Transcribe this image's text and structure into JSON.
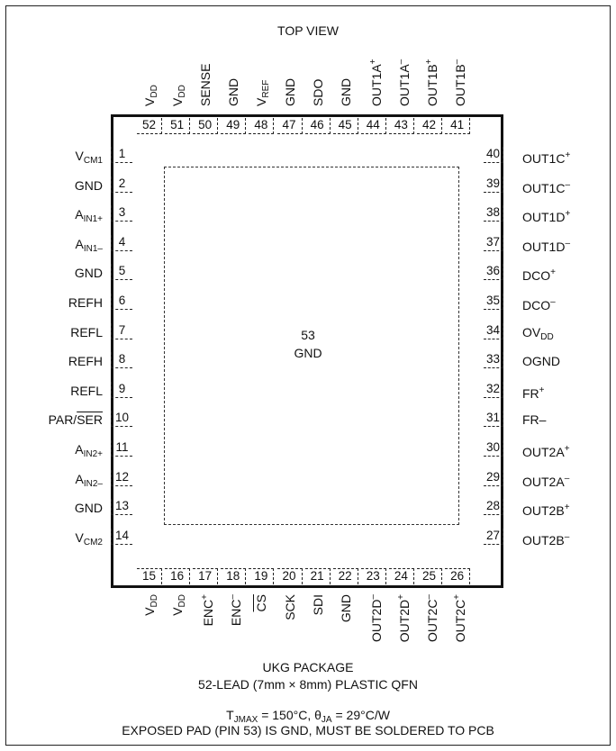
{
  "top_view": "TOP VIEW",
  "center_pin_number": "53",
  "center_pin_name": "GND",
  "package_name": "UKG PACKAGE",
  "package_desc": "52-LEAD (7mm × 8mm) PLASTIC QFN",
  "thermal_note": "T_JMAX = 150°C, θ_JA = 29°C/W",
  "thermal_parts": {
    "t": "T",
    "t_sub": "JMAX",
    "mid": " = 150°C, θ",
    "theta_sub": "JA",
    "end": " = 29°C/W"
  },
  "exposed_pad_note": "EXPOSED PAD (PIN 53) IS GND, MUST BE SOLDERED TO PCB",
  "left_pins": [
    {
      "num": "1",
      "name": "V",
      "sub": "CM1"
    },
    {
      "num": "2",
      "name": "GND"
    },
    {
      "num": "3",
      "name": "A",
      "sub": "IN1+"
    },
    {
      "num": "4",
      "name": "A",
      "sub": "IN1–"
    },
    {
      "num": "5",
      "name": "GND"
    },
    {
      "num": "6",
      "name": "REFH"
    },
    {
      "num": "7",
      "name": "REFL"
    },
    {
      "num": "8",
      "name": "REFH"
    },
    {
      "num": "9",
      "name": "REFL"
    },
    {
      "num": "10",
      "name": "PAR/",
      "over": "SER"
    },
    {
      "num": "11",
      "name": "A",
      "sub": "IN2+"
    },
    {
      "num": "12",
      "name": "A",
      "sub": "IN2–"
    },
    {
      "num": "13",
      "name": "GND"
    },
    {
      "num": "14",
      "name": "V",
      "sub": "CM2"
    }
  ],
  "bottom_pins": [
    {
      "num": "15",
      "name": "V",
      "sub": "DD"
    },
    {
      "num": "16",
      "name": "V",
      "sub": "DD"
    },
    {
      "num": "17",
      "name": "ENC",
      "sup": "+"
    },
    {
      "num": "18",
      "name": "ENC",
      "sup": "–"
    },
    {
      "num": "19",
      "over": "CS"
    },
    {
      "num": "20",
      "name": "SCK"
    },
    {
      "num": "21",
      "name": "SDI"
    },
    {
      "num": "22",
      "name": "GND"
    },
    {
      "num": "23",
      "name": "OUT2D",
      "sup": "–"
    },
    {
      "num": "24",
      "name": "OUT2D",
      "sup": "+"
    },
    {
      "num": "25",
      "name": "OUT2C",
      "sup": "–"
    },
    {
      "num": "26",
      "name": "OUT2C",
      "sup": "+"
    }
  ],
  "right_pins": [
    {
      "num": "27",
      "name": "OUT2B",
      "sup": "–"
    },
    {
      "num": "28",
      "name": "OUT2B",
      "sup": "+"
    },
    {
      "num": "29",
      "name": "OUT2A",
      "sup": "–"
    },
    {
      "num": "30",
      "name": "OUT2A",
      "sup": "+"
    },
    {
      "num": "31",
      "name": "FR–"
    },
    {
      "num": "32",
      "name": "FR",
      "sup": "+"
    },
    {
      "num": "33",
      "name": "OGND"
    },
    {
      "num": "34",
      "name": "OV",
      "sub": "DD"
    },
    {
      "num": "35",
      "name": "DCO",
      "sup": "–"
    },
    {
      "num": "36",
      "name": "DCO",
      "sup": "+"
    },
    {
      "num": "37",
      "name": "OUT1D",
      "sup": "–"
    },
    {
      "num": "38",
      "name": "OUT1D",
      "sup": "+"
    },
    {
      "num": "39",
      "name": "OUT1C",
      "sup": "–"
    },
    {
      "num": "40",
      "name": "OUT1C",
      "sup": "+"
    }
  ],
  "top_pins": [
    {
      "num": "41",
      "name": "OUT1B",
      "sup": "–"
    },
    {
      "num": "42",
      "name": "OUT1B",
      "sup": "+"
    },
    {
      "num": "43",
      "name": "OUT1A",
      "sup": "–"
    },
    {
      "num": "44",
      "name": "OUT1A",
      "sup": "+"
    },
    {
      "num": "45",
      "name": "GND"
    },
    {
      "num": "46",
      "name": "SDO"
    },
    {
      "num": "47",
      "name": "GND"
    },
    {
      "num": "48",
      "name": "V",
      "sub": "REF"
    },
    {
      "num": "49",
      "name": "GND"
    },
    {
      "num": "50",
      "name": "SENSE"
    },
    {
      "num": "51",
      "name": "V",
      "sub": "DD"
    },
    {
      "num": "52",
      "name": "V",
      "sub": "DD"
    }
  ]
}
